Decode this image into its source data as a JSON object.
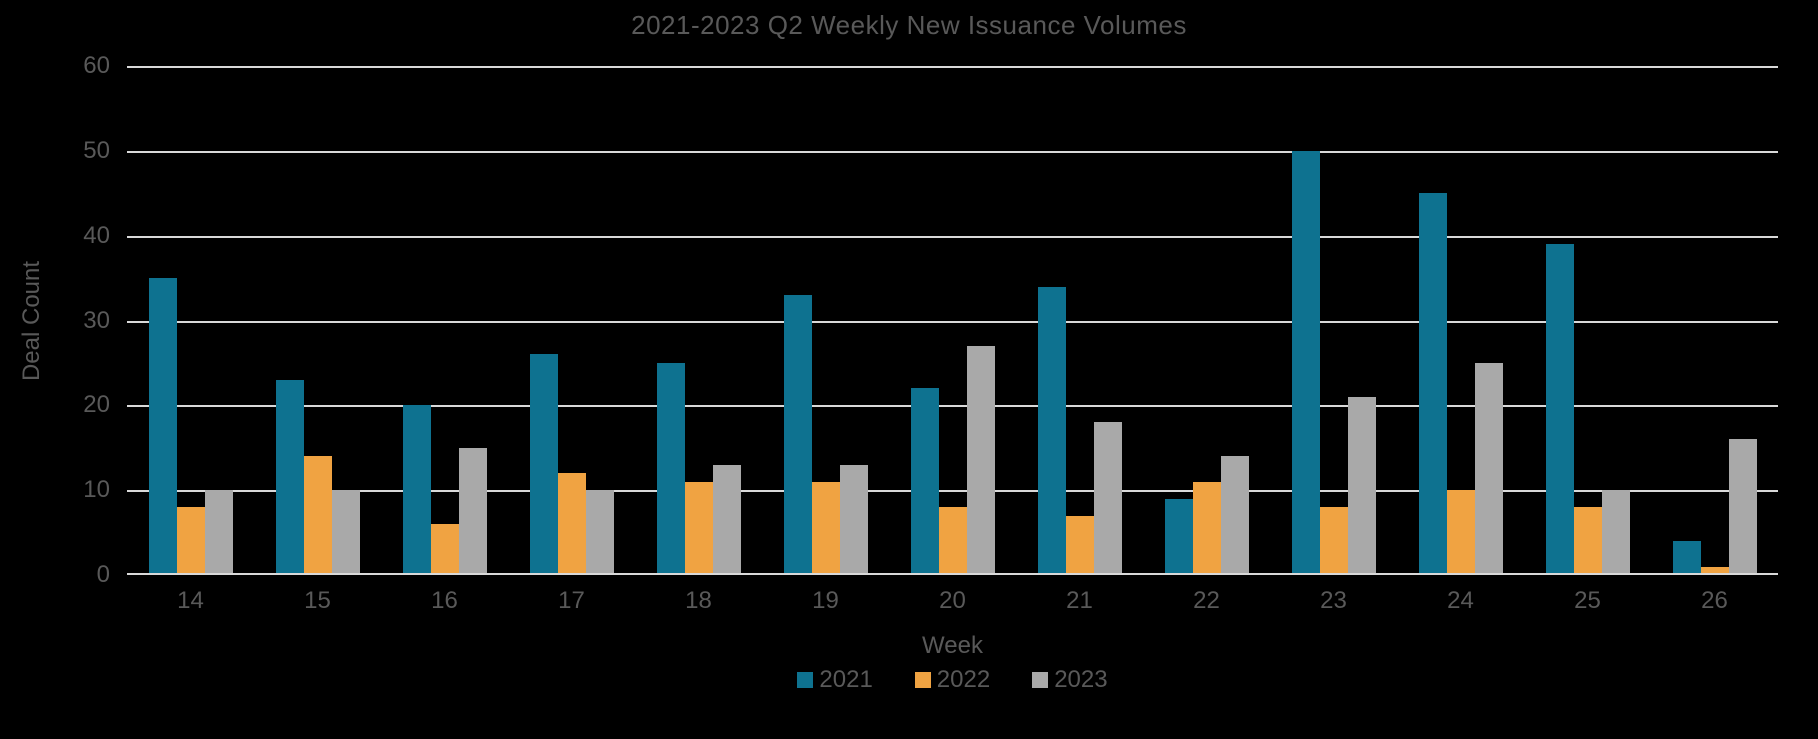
{
  "chart_data": {
    "type": "bar",
    "title": "2021-2023 Q2 Weekly New Issuance Volumes",
    "xlabel": "Week",
    "ylabel": "Deal Count",
    "ylim": [
      0,
      60
    ],
    "yticks": [
      0,
      10,
      20,
      30,
      40,
      50,
      60
    ],
    "grid": true,
    "legend_position": "bottom",
    "background_color": "#000000",
    "text_color": "#595959",
    "gridline_color": "#d9d9d9",
    "categories": [
      "14",
      "15",
      "16",
      "17",
      "18",
      "19",
      "20",
      "21",
      "22",
      "23",
      "24",
      "25",
      "26"
    ],
    "series": [
      {
        "name": "2021",
        "color": "#0e7290",
        "values": [
          35,
          23,
          20,
          26,
          25,
          33,
          22,
          34,
          9,
          50,
          45,
          39,
          4
        ]
      },
      {
        "name": "2022",
        "color": "#f0a342",
        "values": [
          8,
          14,
          6,
          12,
          11,
          11,
          8,
          7,
          11,
          8,
          10,
          8,
          1
        ]
      },
      {
        "name": "2023",
        "color": "#a9a9a9",
        "values": [
          10,
          10,
          15,
          10,
          13,
          13,
          27,
          18,
          14,
          21,
          25,
          10,
          16
        ]
      }
    ]
  }
}
